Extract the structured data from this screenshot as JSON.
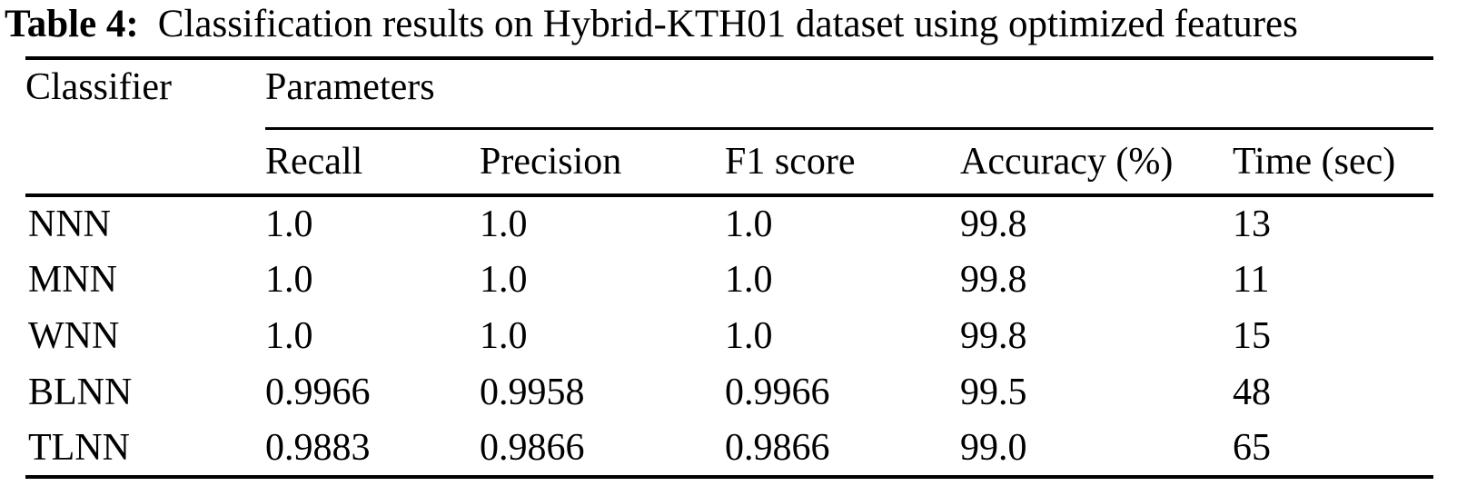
{
  "caption": {
    "label": "Table 4:",
    "text": "Classification results on Hybrid-KTH01 dataset using optimized features"
  },
  "table": {
    "corner_header": "Classifier",
    "group_header": "Parameters",
    "columns": [
      "Recall",
      "Precision",
      "F1 score",
      "Accuracy (%)",
      "Time (sec)"
    ],
    "rows": [
      [
        "NNN",
        "1.0",
        "1.0",
        "1.0",
        "99.8",
        "13"
      ],
      [
        "MNN",
        "1.0",
        "1.0",
        "1.0",
        "99.8",
        "11"
      ],
      [
        "WNN",
        "1.0",
        "1.0",
        "1.0",
        "99.8",
        "15"
      ],
      [
        "BLNN",
        "0.9966",
        "0.9958",
        "0.9966",
        "99.5",
        "48"
      ],
      [
        "TLNN",
        "0.9883",
        "0.9866",
        "0.9866",
        "99.0",
        "65"
      ]
    ]
  },
  "colors": {
    "text": "#000000",
    "background": "#ffffff",
    "rule": "#000000"
  }
}
